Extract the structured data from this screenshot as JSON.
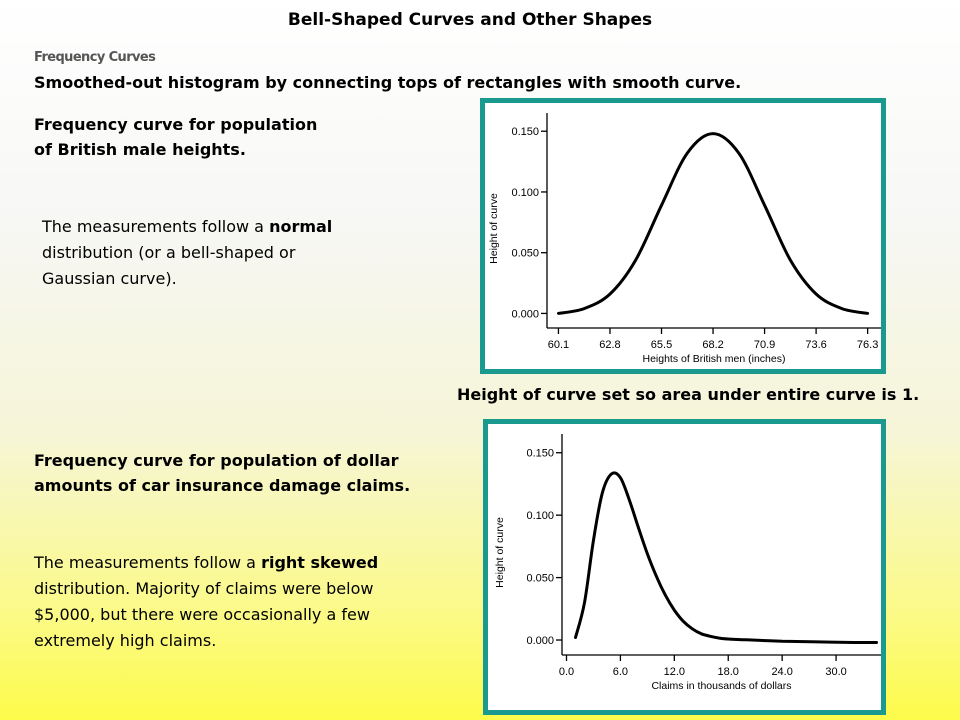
{
  "slide": {
    "title": "Bell-Shaped Curves and Other Shapes",
    "subheading": "Frequency Curves",
    "lead": "Smoothed-out histogram by connecting tops of rectangles with smooth curve."
  },
  "section1": {
    "heading_line1": "Frequency curve for population",
    "heading_line2": "of British male heights.",
    "desc_a": "The measurements follow a ",
    "desc_bold": "normal",
    "desc_b": "distribution (or a bell-shaped or",
    "desc_c": "Gaussian curve).",
    "caption": "Height of curve set so area under entire curve is 1."
  },
  "section2": {
    "heading_line1": "Frequency curve for population of dollar",
    "heading_line2": "amounts of car insurance damage claims.",
    "desc_a": "The measurements follow a ",
    "desc_bold": "right skewed",
    "desc_b": "distribution. Majority of claims were below",
    "desc_c": "$5,000, but there were occasionally a few",
    "desc_d": "extremely high claims."
  },
  "colors": {
    "frame": "#1a9a8e",
    "curve": "#000000"
  },
  "chart_data": [
    {
      "type": "line",
      "shape": "normal",
      "xlabel": "Heights of British men (inches)",
      "ylabel": "Height of curve",
      "x_ticks": [
        "60.1",
        "62.8",
        "65.5",
        "68.2",
        "70.9",
        "73.6",
        "76.3"
      ],
      "y_ticks": [
        "0.000",
        "0.050",
        "0.100",
        "0.150"
      ],
      "xlim": [
        59.5,
        77
      ],
      "ylim": [
        -0.012,
        0.165
      ],
      "x": [
        60.1,
        61.45,
        62.8,
        64.15,
        65.5,
        66.85,
        68.2,
        69.55,
        70.9,
        72.25,
        73.6,
        74.95,
        76.3
      ],
      "y": [
        0.0,
        0.004,
        0.016,
        0.044,
        0.089,
        0.132,
        0.148,
        0.132,
        0.089,
        0.044,
        0.016,
        0.004,
        0.0
      ]
    },
    {
      "type": "line",
      "shape": "right-skewed",
      "xlabel": "Claims in thousands of dollars",
      "ylabel": "Height of curve",
      "x_ticks": [
        "0.0",
        "6.0",
        "12.0",
        "18.0",
        "24.0",
        "30.0"
      ],
      "y_ticks": [
        "0.000",
        "0.050",
        "0.100",
        "0.150"
      ],
      "xlim": [
        -0.5,
        35
      ],
      "ylim": [
        -0.012,
        0.165
      ],
      "x": [
        1.0,
        2.0,
        3.0,
        4.0,
        5.0,
        6.0,
        7.0,
        8.0,
        9.0,
        10.0,
        11.0,
        12.0,
        13.0,
        14.0,
        15.0,
        16.0,
        17.0,
        18.0,
        20.0,
        24.0,
        28.0,
        32.0,
        34.5
      ],
      "y": [
        0.002,
        0.03,
        0.08,
        0.118,
        0.133,
        0.13,
        0.112,
        0.09,
        0.069,
        0.051,
        0.036,
        0.024,
        0.015,
        0.009,
        0.005,
        0.003,
        0.0015,
        0.0008,
        0.0002,
        -0.001,
        -0.0015,
        -0.002,
        -0.002
      ]
    }
  ]
}
